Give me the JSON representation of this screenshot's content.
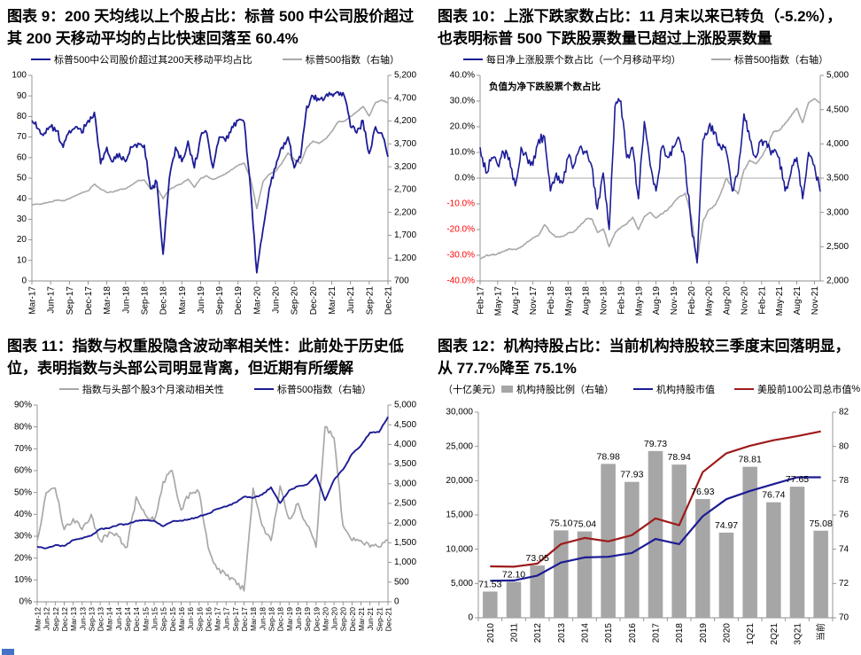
{
  "colors": {
    "navy": "#1c1c96",
    "gray": "#a8a8a8",
    "bar_gray": "#a6a6a6",
    "dark_red": "#9e1b1b",
    "red_label": "#ff0000",
    "axis": "#8c8c8c",
    "text": "#000000"
  },
  "corner_artifact_color": "#4472c4",
  "charts": [
    {
      "title": "图表 9：200 天均线以上个股占比：标普 500 中公司股价超过其 200 天移动平均的占比快速回落至 60.4%",
      "legend": [
        {
          "label": "标普500中公司股价超过其200天移动平均占比",
          "color": "navy",
          "marker": "line"
        },
        {
          "label": "标普500指数（右轴）",
          "color": "gray",
          "marker": "line"
        }
      ],
      "chart_data": {
        "type": "line",
        "x_labels": [
          "Mar-17",
          "Jun-17",
          "Sep-17",
          "Dec-17",
          "Mar-18",
          "Jun-18",
          "Sep-18",
          "Dec-18",
          "Mar-19",
          "Jun-19",
          "Sep-19",
          "Dec-19",
          "Mar-20",
          "Jun-20",
          "Sep-20",
          "Dec-20",
          "Mar-21",
          "Jun-21",
          "Sep-21",
          "Dec-21"
        ],
        "label_every": 3,
        "y_left": {
          "min": 0,
          "max": 100,
          "step": 10,
          "format": "int"
        },
        "y_right": {
          "min": 700,
          "max": 5200,
          "step": 500,
          "format": "comma"
        },
        "series": [
          {
            "name": "标普500指数（右轴）",
            "axis": "right",
            "color": "gray",
            "width": 1.6,
            "jitter": 20,
            "values": [
              2370,
              2380,
              2400,
              2430,
              2470,
              2460,
              2500,
              2570,
              2630,
              2670,
              2820,
              2710,
              2640,
              2650,
              2700,
              2720,
              2800,
              2900,
              2910,
              2710,
              2760,
              2500,
              2700,
              2780,
              2830,
              2930,
              2750,
              2940,
              3000,
              2920,
              2980,
              3040,
              3140,
              3230,
              3280,
              2950,
              2280,
              2870,
              3040,
              3100,
              3270,
              3500,
              3360,
              3270,
              3620,
              3760,
              3710,
              3810,
              3970,
              4180,
              4200,
              4300,
              4400,
              4520,
              4310,
              4600,
              4660,
              4600
            ]
          },
          {
            "name": "标普500中公司股价超过其200天移动平均占比",
            "axis": "left",
            "color": "navy",
            "width": 1.8,
            "jitter": 3.4,
            "values": [
              78,
              74,
              72,
              75,
              73,
              65,
              73,
              75,
              72,
              78,
              82,
              57,
              65,
              58,
              62,
              58,
              65,
              67,
              66,
              45,
              48,
              13,
              50,
              65,
              58,
              68,
              55,
              70,
              72,
              55,
              70,
              68,
              75,
              78,
              77,
              45,
              4,
              25,
              45,
              55,
              65,
              70,
              55,
              60,
              85,
              90,
              88,
              90,
              91,
              92,
              90,
              75,
              72,
              78,
              62,
              75,
              72,
              60.4
            ]
          }
        ]
      }
    },
    {
      "title": "图表 10：上涨下跌家数占比：11 月末以来已转负（-5.2%），也表明标普 500 下跌股票数量已超过上涨股票数量",
      "legend": [
        {
          "label": "每日净上涨股票个数占比（一个月移动平均）",
          "color": "navy",
          "marker": "line"
        },
        {
          "label": "标普500指数（右轴）",
          "color": "gray",
          "marker": "line"
        }
      ],
      "chart_data": {
        "type": "line",
        "annotation": "负值为净下跌股票个数占比",
        "zero_line": true,
        "x_labels": [
          "Feb-17",
          "May-17",
          "Aug-17",
          "Nov-17",
          "Feb-18",
          "May-18",
          "Aug-18",
          "Nov-18",
          "Feb-19",
          "May-19",
          "Aug-19",
          "Nov-19",
          "Feb-20",
          "May-20",
          "Aug-20",
          "Nov-20",
          "Feb-21",
          "May-21",
          "Aug-21",
          "Nov-21"
        ],
        "label_every": 3,
        "y_left": {
          "min": -40,
          "max": 40,
          "step": 10,
          "format": "pct1",
          "negative_red": true
        },
        "y_right": {
          "min": 2000,
          "max": 5000,
          "step": 500,
          "format": "comma"
        },
        "series": [
          {
            "name": "标普500指数（右轴）",
            "axis": "right",
            "color": "gray",
            "width": 1.6,
            "jitter": 22,
            "values": [
              2330,
              2370,
              2380,
              2400,
              2430,
              2470,
              2460,
              2500,
              2570,
              2630,
              2670,
              2820,
              2710,
              2640,
              2650,
              2700,
              2720,
              2800,
              2900,
              2910,
              2710,
              2760,
              2500,
              2700,
              2780,
              2830,
              2930,
              2750,
              2940,
              3000,
              2920,
              2980,
              3040,
              3140,
              3230,
              3280,
              2950,
              2280,
              2870,
              3040,
              3100,
              3270,
              3500,
              3360,
              3270,
              3620,
              3760,
              3710,
              3810,
              3970,
              4180,
              4200,
              4300,
              4400,
              4520,
              4310,
              4600,
              4660,
              4600
            ]
          },
          {
            "name": "每日净上涨股票个数占比（一个月移动平均）",
            "axis": "left",
            "color": "navy",
            "width": 1.6,
            "jitter": 4,
            "values": [
              12,
              2,
              8,
              5,
              10,
              8,
              -3,
              12,
              8,
              5,
              15,
              16,
              -5,
              2,
              -2,
              8,
              5,
              12,
              10,
              5,
              -12,
              2,
              -20,
              28,
              30,
              8,
              12,
              -8,
              22,
              5,
              -5,
              12,
              8,
              12,
              15,
              5,
              -18,
              -33,
              15,
              20,
              18,
              12,
              10,
              -5,
              2,
              25,
              15,
              8,
              15,
              12,
              10,
              8,
              -5,
              2,
              8,
              -8,
              10,
              5,
              -5.2
            ]
          }
        ]
      }
    },
    {
      "title": "图表 11：指数与权重股隐含波动率相关性：此前处于历史低位，表明指数与头部公司明显背离，但近期有所缓解",
      "legend": [
        {
          "label": "指数与头部个股3个月滚动相关性",
          "color": "gray",
          "marker": "line"
        },
        {
          "label": "标普500指数（右轴）",
          "color": "navy",
          "marker": "line"
        }
      ],
      "chart_data": {
        "type": "line",
        "x_labels": [
          "Mar-12",
          "Jun-12",
          "Sep-12",
          "Dec-12",
          "Mar-13",
          "Jun-13",
          "Sep-13",
          "Dec-13",
          "Mar-14",
          "Jun-14",
          "Sep-14",
          "Dec-14",
          "Mar-15",
          "Jun-15",
          "Sep-15",
          "Dec-15",
          "Mar-16",
          "Jun-16",
          "Sep-16",
          "Dec-16",
          "Mar-17",
          "Jun-17",
          "Sep-17",
          "Dec-17",
          "Mar-18",
          "Jun-18",
          "Sep-18",
          "Dec-18",
          "Mar-19",
          "Jun-19",
          "Sep-19",
          "Dec-19",
          "Mar-20",
          "Jun-20",
          "Sep-20",
          "Dec-20",
          "Mar-21",
          "Jun-21",
          "Sep-21",
          "Dec-21"
        ],
        "label_every": 1,
        "y_left": {
          "min": 0,
          "max": 90,
          "step": 10,
          "format": "pct0"
        },
        "y_right": {
          "min": 0,
          "max": 5000,
          "step": 500,
          "format": "comma"
        },
        "series": [
          {
            "name": "指数与头部个股3个月滚动相关性",
            "axis": "left",
            "color": "gray",
            "width": 1.7,
            "jitter": 3,
            "values": [
              28,
              50,
              52,
              33,
              38,
              33,
              40,
              28,
              32,
              30,
              25,
              48,
              40,
              37,
              55,
              60,
              42,
              50,
              50,
              25,
              15,
              12,
              10,
              5,
              52,
              35,
              28,
              53,
              38,
              45,
              35,
              25,
              80,
              75,
              35,
              28,
              28,
              25,
              25,
              28
            ]
          },
          {
            "name": "标普500指数（右轴）",
            "axis": "right",
            "color": "navy",
            "width": 1.9,
            "jitter": 28,
            "values": [
              1400,
              1360,
              1440,
              1420,
              1570,
              1610,
              1680,
              1850,
              1870,
              1960,
              1970,
              2060,
              2070,
              2060,
              1920,
              2040,
              2060,
              2100,
              2170,
              2240,
              2360,
              2420,
              2520,
              2670,
              2640,
              2720,
              2910,
              2510,
              2830,
              2940,
              2980,
              3230,
              2580,
              3100,
              3360,
              3760,
              3970,
              4300,
              4310,
              4700
            ]
          }
        ]
      }
    },
    {
      "title": "图表 12：机构持股占比：当前机构持股较三季度末回落明显，从 77.7%降至 75.1%",
      "unit_left": "（十亿美元）",
      "unit_right": "%",
      "legend": [
        {
          "label": "机构持股比例（右轴）",
          "color": "bar_gray",
          "marker": "bar"
        },
        {
          "label": "机构持股市值",
          "color": "navy",
          "marker": "line"
        },
        {
          "label": "美股前100公司总市值",
          "color": "dark_red",
          "marker": "line"
        }
      ],
      "chart_data": {
        "type": "bar-line-combo",
        "categories": [
          "2010",
          "2011",
          "2012",
          "2013",
          "2014",
          "2015",
          "2016",
          "2017",
          "2018",
          "2019",
          "2020",
          "1Q21",
          "2Q21",
          "3Q21",
          "当前"
        ],
        "y_left": {
          "min": 0,
          "max": 30000,
          "step": 5000,
          "format": "comma"
        },
        "y_right": {
          "min": 70,
          "max": 82,
          "step": 2,
          "format": "int"
        },
        "bars": {
          "name": "机构持股比例（右轴）",
          "axis": "right",
          "color": "bar_gray",
          "values": [
            71.53,
            72.1,
            73.05,
            75.1,
            75.04,
            78.98,
            77.93,
            79.73,
            78.94,
            76.93,
            74.97,
            78.81,
            76.74,
            77.65,
            75.08
          ],
          "labels": [
            "71.53",
            "72.10",
            "73.05",
            "75.10",
            "75.04",
            "78.98",
            "77.93",
            "79.73",
            "78.94",
            "76.93",
            "74.97",
            "78.81",
            "76.74",
            "77.65",
            "75.08"
          ]
        },
        "series": [
          {
            "name": "美股前100公司总市值",
            "axis": "left",
            "color": "dark_red",
            "width": 2.2,
            "jitter": 0,
            "values": [
              7500,
              7450,
              7900,
              10750,
              11650,
              11150,
              12050,
              14500,
              13500,
              21250,
              24000,
              25100,
              25900,
              26500,
              27200
            ]
          },
          {
            "name": "机构持股市值",
            "axis": "left",
            "color": "navy",
            "width": 2.2,
            "jitter": 0,
            "values": [
              5400,
              5450,
              6150,
              8050,
              8800,
              8900,
              9450,
              11500,
              10750,
              14800,
              17300,
              18500,
              19500,
              20500,
              20500
            ]
          }
        ]
      }
    }
  ]
}
